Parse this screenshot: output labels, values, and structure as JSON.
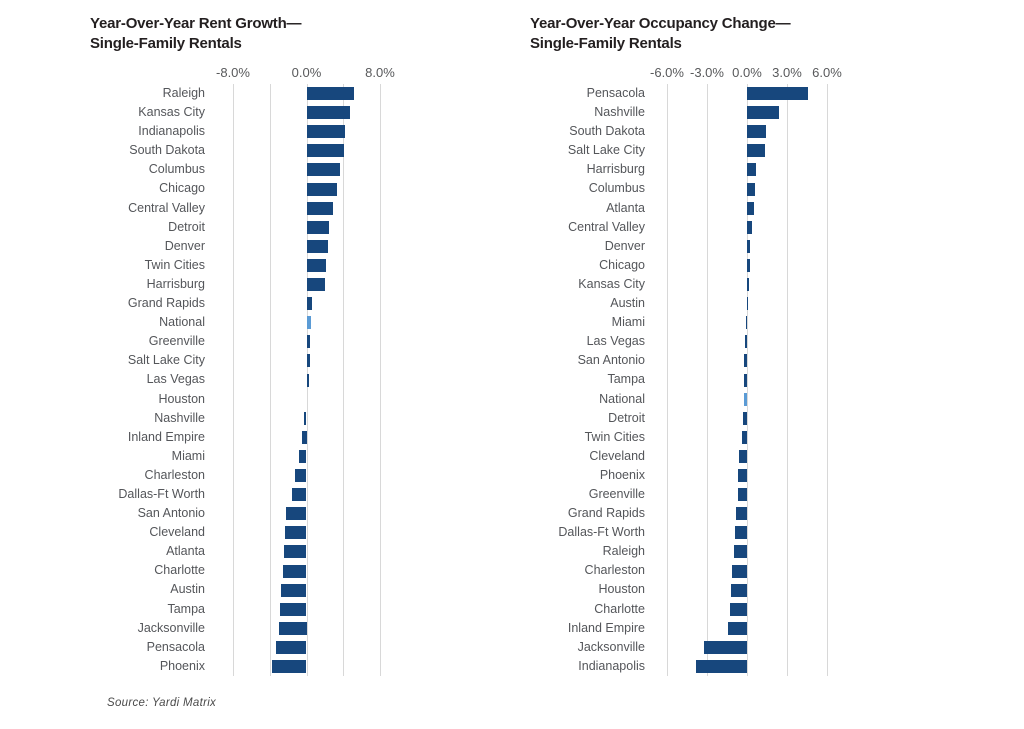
{
  "source_note": "Source: Yardi Matrix",
  "colors": {
    "bar": "#17477D",
    "bar_highlight": "#5B9BD5",
    "gridline": "#D8D8D8",
    "label_text": "#54565A",
    "axis_text": "#58595B",
    "title_text": "#231F20"
  },
  "chart_data": [
    {
      "type": "bar",
      "orientation": "horizontal",
      "title_line1": "Year-Over-Year Rent Growth—",
      "title_line2": "Single-Family Rentals",
      "xlabel": "",
      "ylabel": "",
      "xlim": [
        -8,
        8
      ],
      "grid": true,
      "gridlines": [
        -8,
        -4,
        0,
        4,
        8
      ],
      "ticks": [
        {
          "value": -8,
          "label": "-8.0%"
        },
        {
          "value": 0,
          "label": "0.0%"
        },
        {
          "value": 8,
          "label": "8.0%"
        }
      ],
      "highlight_category": "National",
      "categories": [
        "Raleigh",
        "Kansas City",
        "Indianapolis",
        "South Dakota",
        "Columbus",
        "Chicago",
        "Central Valley",
        "Detroit",
        "Denver",
        "Twin Cities",
        "Harrisburg",
        "Grand Rapids",
        "National",
        "Greenville",
        "Salt Lake City",
        "Las Vegas",
        "Houston",
        "Nashville",
        "Inland Empire",
        "Miami",
        "Charleston",
        "Dallas-Ft Worth",
        "San Antonio",
        "Cleveland",
        "Atlanta",
        "Charlotte",
        "Austin",
        "Tampa",
        "Jacksonville",
        "Pensacola",
        "Phoenix"
      ],
      "values": [
        5.2,
        4.7,
        4.2,
        4.1,
        3.7,
        3.3,
        2.9,
        2.5,
        2.3,
        2.1,
        2.0,
        0.6,
        0.5,
        0.4,
        0.35,
        0.3,
        0.0,
        -0.3,
        -0.5,
        -0.8,
        -1.3,
        -1.6,
        -2.2,
        -2.3,
        -2.4,
        -2.6,
        -2.8,
        -2.9,
        -3.0,
        -3.3,
        -3.8
      ],
      "value_unit": "%"
    },
    {
      "type": "bar",
      "orientation": "horizontal",
      "title_line1": "Year-Over-Year Occupancy Change—",
      "title_line2": "Single-Family Rentals",
      "xlabel": "",
      "ylabel": "",
      "xlim": [
        -6,
        6
      ],
      "grid": true,
      "gridlines": [
        -6,
        -3,
        0,
        3,
        6
      ],
      "ticks": [
        {
          "value": -6,
          "label": "-6.0%"
        },
        {
          "value": -3,
          "label": "-3.0%"
        },
        {
          "value": 0,
          "label": "0.0%"
        },
        {
          "value": 3,
          "label": "3.0%"
        },
        {
          "value": 6,
          "label": "6.0%"
        }
      ],
      "highlight_category": "National",
      "categories": [
        "Pensacola",
        "Nashville",
        "South Dakota",
        "Salt Lake City",
        "Harrisburg",
        "Columbus",
        "Atlanta",
        "Central Valley",
        "Denver",
        "Chicago",
        "Kansas City",
        "Austin",
        "Miami",
        "Las Vegas",
        "San Antonio",
        "Tampa",
        "National",
        "Detroit",
        "Twin Cities",
        "Cleveland",
        "Phoenix",
        "Greenville",
        "Grand Rapids",
        "Dallas-Ft Worth",
        "Raleigh",
        "Charleston",
        "Houston",
        "Charlotte",
        "Inland Empire",
        "Jacksonville",
        "Indianapolis"
      ],
      "values": [
        4.6,
        2.4,
        1.4,
        1.35,
        0.7,
        0.6,
        0.5,
        0.4,
        0.25,
        0.2,
        0.15,
        0.05,
        -0.05,
        -0.15,
        -0.2,
        -0.25,
        -0.25,
        -0.3,
        -0.4,
        -0.6,
        -0.65,
        -0.7,
        -0.8,
        -0.9,
        -1.0,
        -1.1,
        -1.2,
        -1.25,
        -1.4,
        -3.2,
        -3.8
      ],
      "value_unit": "%"
    }
  ]
}
